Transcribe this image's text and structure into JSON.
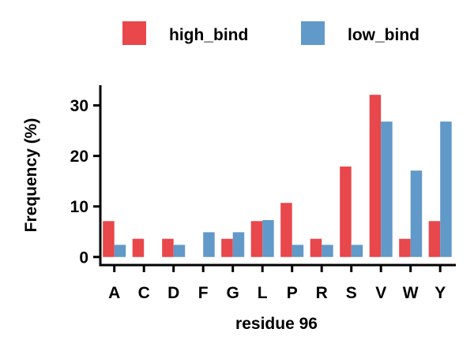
{
  "chart_data": {
    "type": "bar",
    "xlabel": "residue 96",
    "ylabel": "Frequency (%)",
    "ylim": [
      -1.6,
      34
    ],
    "yticks": [
      0,
      10,
      20,
      30
    ],
    "grid": false,
    "legend_position": "top",
    "categories": [
      "A",
      "C",
      "D",
      "F",
      "G",
      "L",
      "P",
      "R",
      "S",
      "V",
      "W",
      "Y"
    ],
    "series": [
      {
        "name": "high_bind",
        "color": "#E8474B",
        "values": [
          7.1,
          3.6,
          3.6,
          0,
          3.6,
          7.1,
          10.7,
          3.6,
          17.9,
          32.1,
          3.6,
          7.1
        ]
      },
      {
        "name": "low_bind",
        "color": "#6199C9",
        "values": [
          2.4,
          0,
          2.4,
          4.9,
          4.9,
          7.3,
          2.4,
          2.4,
          2.4,
          26.8,
          17.1,
          26.8
        ]
      }
    ]
  }
}
